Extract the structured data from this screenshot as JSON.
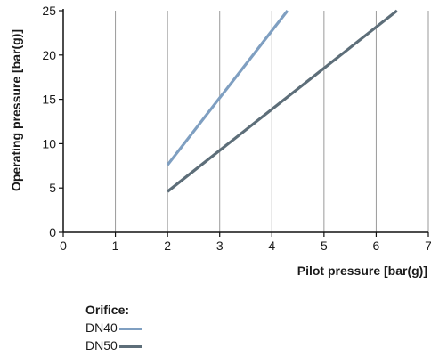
{
  "chart_data": {
    "type": "line",
    "xlabel": "Pilot pressure [bar(g)]",
    "ylabel": "Operating pressure [bar(g)]",
    "xlim": [
      0,
      7
    ],
    "ylim": [
      0,
      25
    ],
    "xticks": [
      "0",
      "1",
      "2",
      "3",
      "4",
      "5",
      "6",
      "7"
    ],
    "yticks": [
      "0",
      "5",
      "10",
      "15",
      "20",
      "25"
    ],
    "grid": "vertical",
    "legend_title": "Orifice:",
    "series": [
      {
        "name": "DN40",
        "color": "#7f9fc1",
        "x": [
          2,
          4.3
        ],
        "y": [
          7.6,
          25
        ]
      },
      {
        "name": "DN50",
        "color": "#5d6e79",
        "x": [
          2,
          6.4
        ],
        "y": [
          4.6,
          25
        ]
      }
    ]
  }
}
